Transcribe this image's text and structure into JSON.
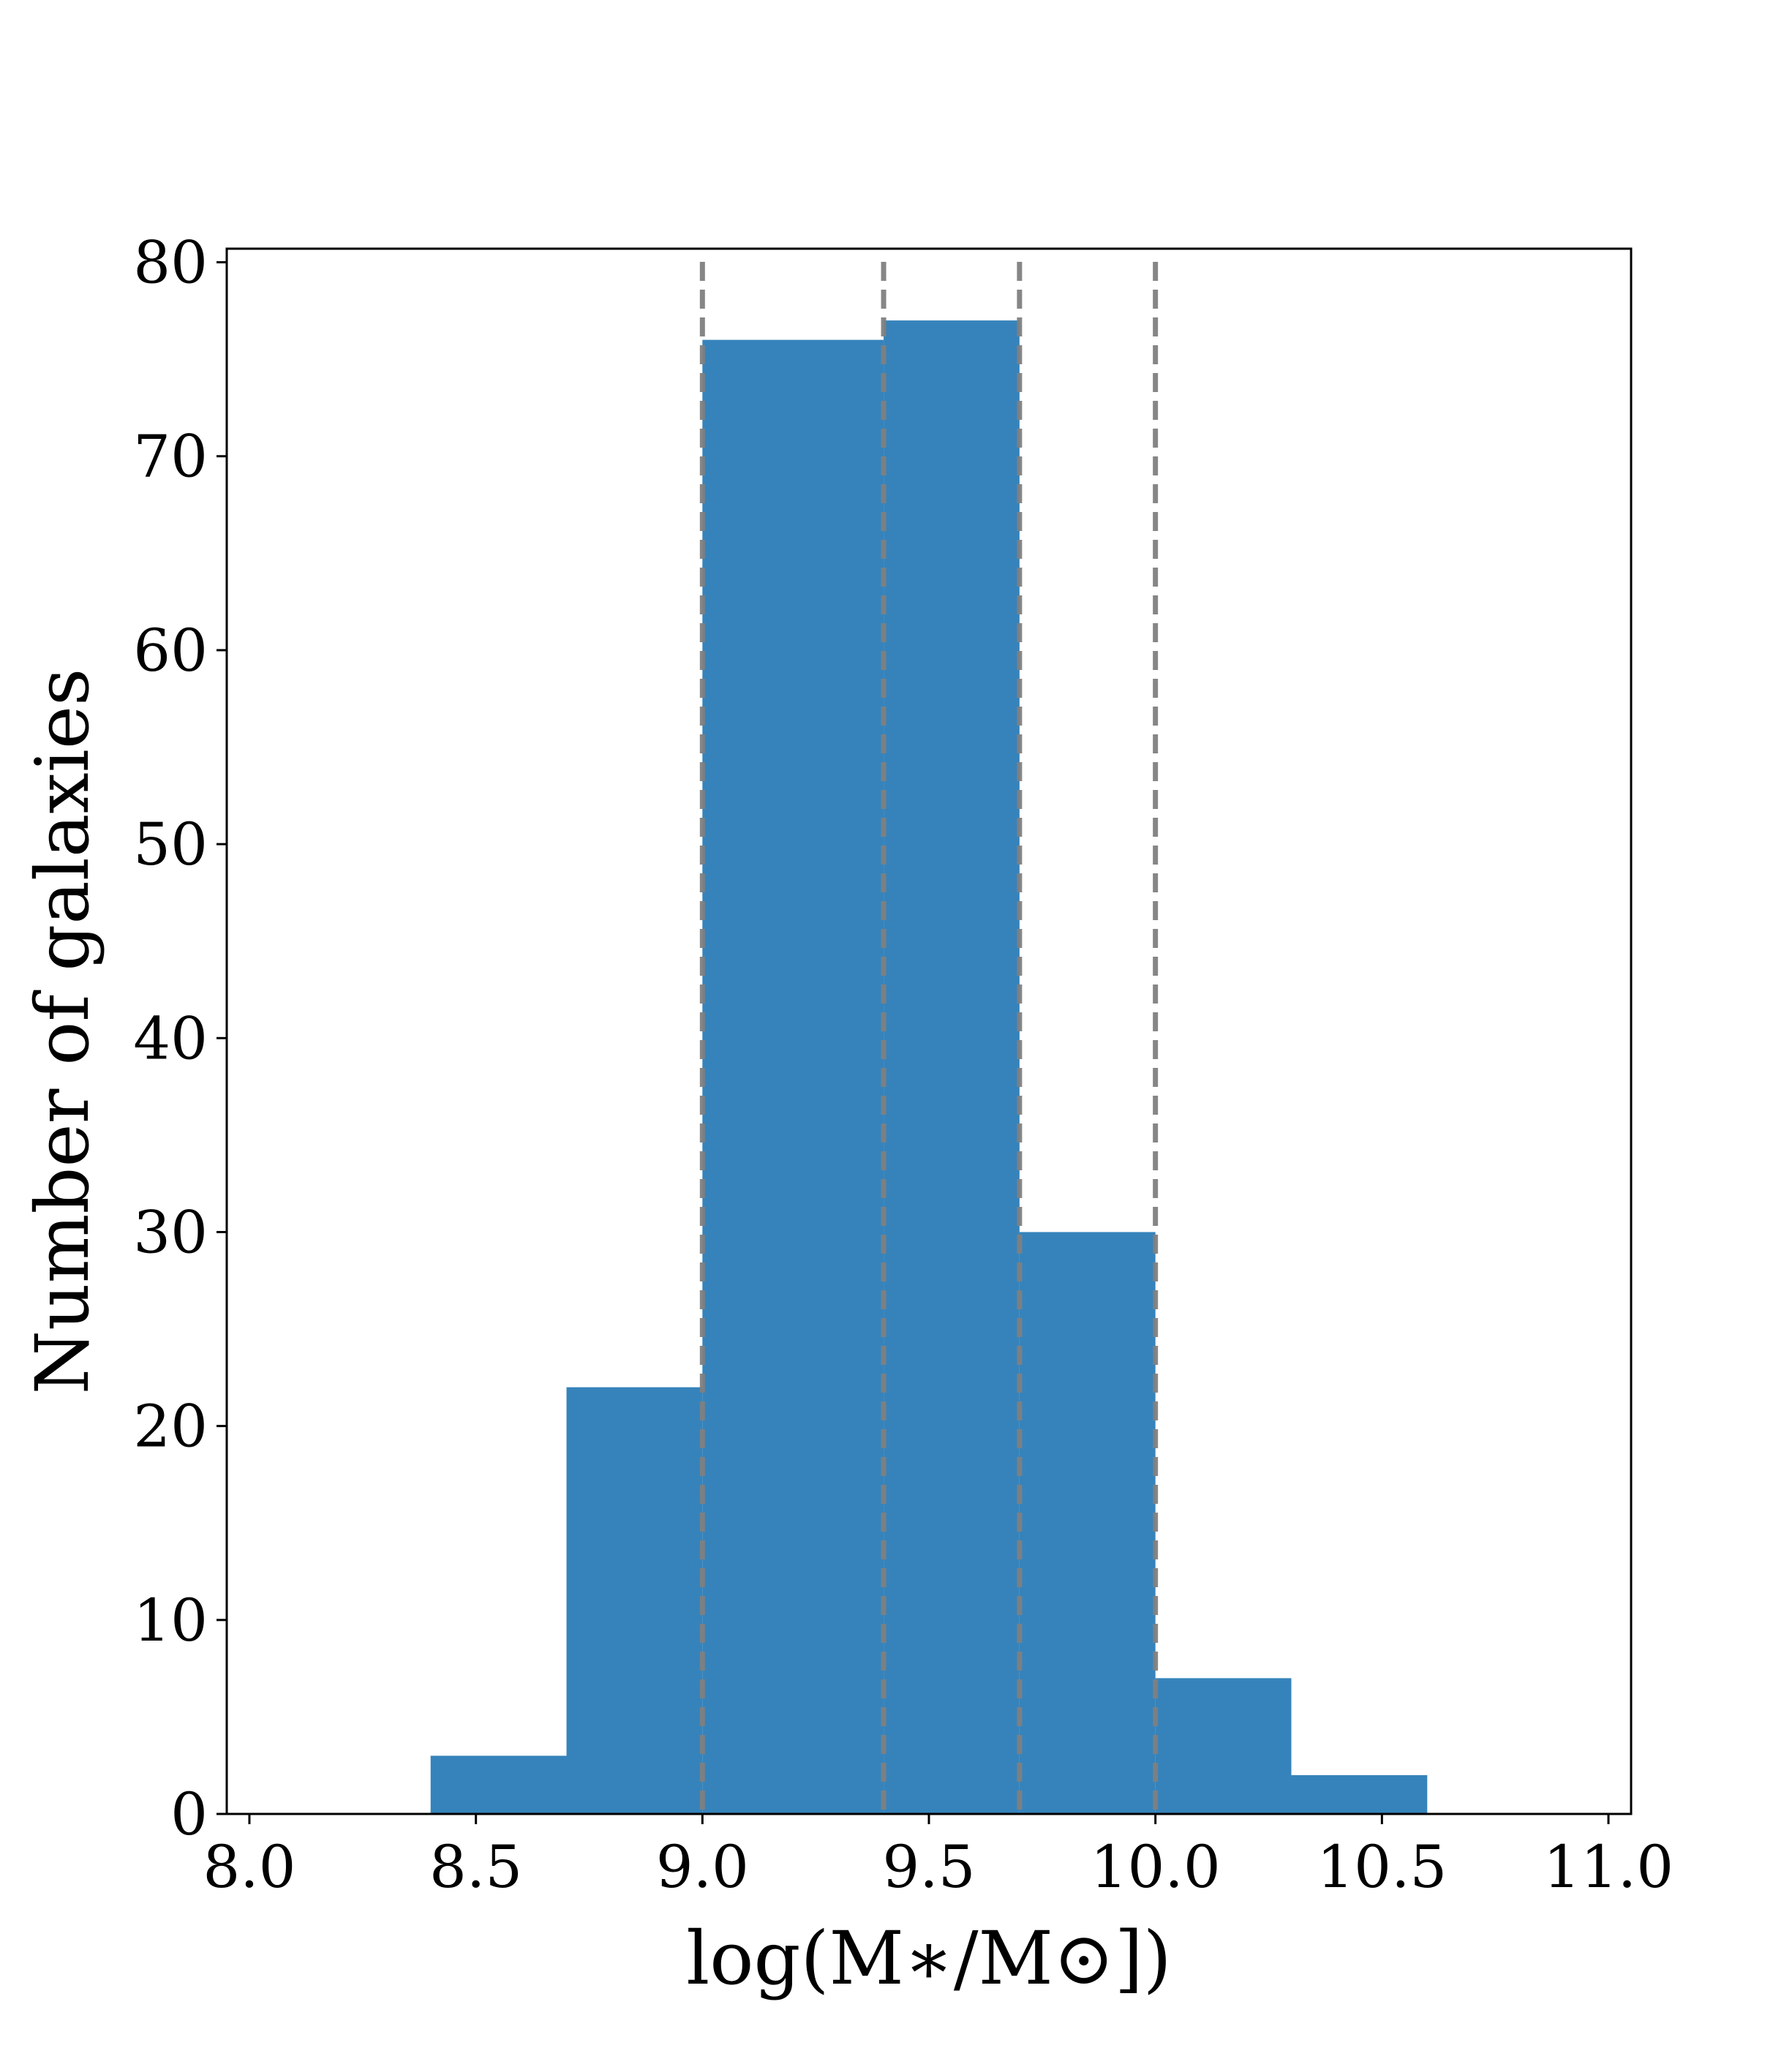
{
  "chart_data": {
    "type": "bar",
    "title": "",
    "xlabel": "log(M∗/M⊙])",
    "ylabel": "Number of galaxies",
    "xlim": [
      7.95,
      11.05
    ],
    "ylim": [
      0,
      80.7
    ],
    "grid": false,
    "bar_color": "#3683bb",
    "bins": [
      {
        "x0": 8.4,
        "x1": 8.7,
        "value": 3
      },
      {
        "x0": 8.7,
        "x1": 9.0,
        "value": 22
      },
      {
        "x0": 9.0,
        "x1": 9.4,
        "value": 76
      },
      {
        "x0": 9.4,
        "x1": 9.7,
        "value": 77
      },
      {
        "x0": 9.7,
        "x1": 10.0,
        "value": 30
      },
      {
        "x0": 10.0,
        "x1": 10.3,
        "value": 7
      },
      {
        "x0": 10.3,
        "x1": 10.6,
        "value": 2
      }
    ],
    "vlines": {
      "x": [
        9.0,
        9.4,
        9.7,
        10.0
      ],
      "color": "#808080",
      "style": "dashed"
    },
    "xticks": [
      {
        "value": 8.0,
        "label": "8.0"
      },
      {
        "value": 8.5,
        "label": "8.5"
      },
      {
        "value": 9.0,
        "label": "9.0"
      },
      {
        "value": 9.5,
        "label": "9.5"
      },
      {
        "value": 10.0,
        "label": "10.0"
      },
      {
        "value": 10.5,
        "label": "10.5"
      },
      {
        "value": 11.0,
        "label": "11.0"
      }
    ],
    "yticks": [
      {
        "value": 0,
        "label": "0"
      },
      {
        "value": 10,
        "label": "10"
      },
      {
        "value": 20,
        "label": "20"
      },
      {
        "value": 30,
        "label": "30"
      },
      {
        "value": 40,
        "label": "40"
      },
      {
        "value": 50,
        "label": "50"
      },
      {
        "value": 60,
        "label": "60"
      },
      {
        "value": 70,
        "label": "70"
      },
      {
        "value": 80,
        "label": "80"
      }
    ]
  }
}
